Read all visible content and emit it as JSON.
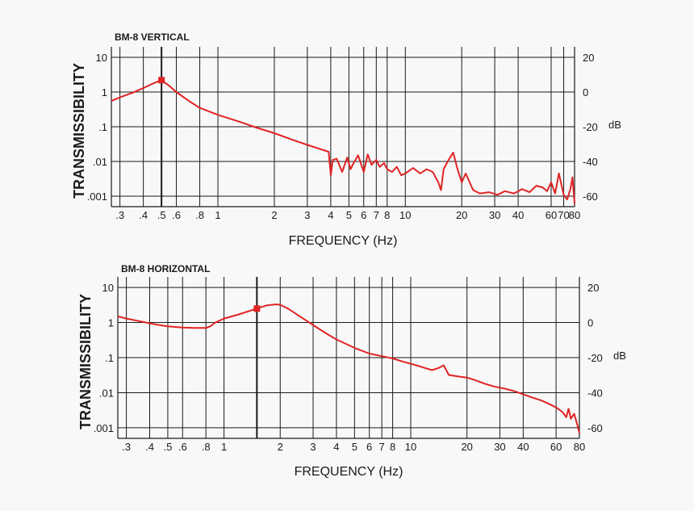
{
  "chart_data": [
    {
      "type": "line",
      "title": "BM-8 VERTICAL",
      "xlabel": "FREQUENCY (Hz)",
      "ylabel": "TRANSMISSIBILITY",
      "x_scale": "log",
      "y_scale": "log",
      "xlim": [
        0.27,
        80
      ],
      "ylim": [
        0.0005,
        20
      ],
      "x_tick_labels": [
        ".3",
        ".4",
        ".5",
        ".6",
        ".8",
        "1",
        "2",
        "3",
        "4",
        "5",
        "6",
        "7",
        "8",
        "10",
        "20",
        "30",
        "40",
        "60",
        "70",
        "80"
      ],
      "x_tick_values": [
        0.3,
        0.4,
        0.5,
        0.6,
        0.8,
        1,
        2,
        3,
        4,
        5,
        6,
        7,
        8,
        10,
        20,
        30,
        40,
        60,
        70,
        80
      ],
      "y_left_tick_labels": [
        "10",
        "1",
        ".1",
        ".01",
        ".001"
      ],
      "y_left_tick_values": [
        10,
        1,
        0.1,
        0.01,
        0.001
      ],
      "y_right_tick_labels": [
        "20",
        "0",
        "-20",
        "-40",
        "-60"
      ],
      "y_right_unit": "dB",
      "grid": true,
      "marker": {
        "x": 0.5,
        "y": 2.2
      },
      "series": [
        {
          "color": "#e02424",
          "x": [
            0.27,
            0.3,
            0.35,
            0.4,
            0.45,
            0.5,
            0.55,
            0.6,
            0.7,
            0.8,
            1.0,
            1.3,
            1.6,
            2.0,
            2.5,
            3.0,
            3.5,
            3.9,
            4.0,
            4.1,
            4.3,
            4.6,
            4.9,
            5.1,
            5.3,
            5.6,
            6.0,
            6.3,
            6.6,
            7.0,
            7.3,
            7.7,
            8.0,
            8.5,
            9.0,
            9.5,
            10.0,
            11.0,
            12.0,
            13.0,
            14.0,
            15.0,
            15.5,
            16.0,
            17.0,
            18.0,
            19.0,
            20.0,
            21.0,
            23.0,
            25.0,
            28.0,
            31.0,
            34.0,
            38.0,
            42.0,
            46.0,
            50.0,
            54.0,
            57.0,
            60.0,
            63.0,
            66.0,
            70.0,
            73.0,
            76.0,
            78.0,
            80.0
          ],
          "values": [
            0.55,
            0.7,
            0.95,
            1.3,
            1.75,
            2.2,
            1.5,
            1.0,
            0.55,
            0.35,
            0.22,
            0.14,
            0.095,
            0.065,
            0.042,
            0.03,
            0.023,
            0.019,
            0.004,
            0.011,
            0.012,
            0.005,
            0.013,
            0.006,
            0.009,
            0.015,
            0.005,
            0.016,
            0.008,
            0.011,
            0.007,
            0.009,
            0.006,
            0.005,
            0.007,
            0.004,
            0.0045,
            0.0065,
            0.0045,
            0.006,
            0.005,
            0.0025,
            0.0015,
            0.006,
            0.011,
            0.018,
            0.006,
            0.0025,
            0.0045,
            0.0015,
            0.0012,
            0.0013,
            0.0011,
            0.0014,
            0.0012,
            0.0016,
            0.0013,
            0.002,
            0.0018,
            0.0014,
            0.0025,
            0.0012,
            0.0045,
            0.0011,
            0.0008,
            0.0016,
            0.0035,
            0.0006
          ]
        }
      ]
    },
    {
      "type": "line",
      "title": "BM-8 HORIZONTAL",
      "xlabel": "FREQUENCY (Hz)",
      "ylabel": "TRANSMISSIBILITY",
      "x_scale": "log",
      "y_scale": "log",
      "xlim": [
        0.27,
        80
      ],
      "ylim": [
        0.0005,
        20
      ],
      "x_tick_labels": [
        ".3",
        ".4",
        ".5",
        ".6",
        ".8",
        "1",
        "2",
        "3",
        "4",
        "5",
        "6",
        "7",
        "8",
        "10",
        "20",
        "30",
        "40",
        "60",
        "80"
      ],
      "x_tick_values": [
        0.3,
        0.4,
        0.5,
        0.6,
        0.8,
        1,
        2,
        3,
        4,
        5,
        6,
        7,
        8,
        10,
        20,
        30,
        40,
        60,
        80
      ],
      "y_left_tick_labels": [
        "10",
        "1",
        ".1",
        ".01",
        ".001"
      ],
      "y_left_tick_values": [
        10,
        1,
        0.1,
        0.01,
        0.001
      ],
      "y_right_tick_labels": [
        "20",
        "0",
        "-20",
        "-40",
        "-60"
      ],
      "y_right_unit": "dB",
      "grid": true,
      "marker": {
        "x": 1.5,
        "y": 2.5
      },
      "series": [
        {
          "color": "#e02424",
          "x": [
            0.27,
            0.3,
            0.35,
            0.4,
            0.45,
            0.5,
            0.6,
            0.7,
            0.8,
            0.85,
            0.9,
            1.0,
            1.2,
            1.5,
            1.7,
            1.9,
            2.0,
            2.2,
            2.5,
            3.0,
            3.5,
            4.0,
            5.0,
            6.0,
            7.0,
            8.0,
            9.0,
            10.0,
            11.0,
            12.0,
            13.0,
            14.0,
            15.0,
            16.0,
            18.0,
            20.0,
            22.0,
            25.0,
            28.0,
            32.0,
            36.0,
            40.0,
            45.0,
            50.0,
            55.0,
            60.0,
            65.0,
            68.0,
            70.0,
            72.0,
            75.0,
            78.0,
            80.0
          ],
          "values": [
            1.5,
            1.3,
            1.1,
            0.95,
            0.85,
            0.78,
            0.72,
            0.7,
            0.7,
            0.8,
            1.0,
            1.3,
            1.7,
            2.5,
            3.1,
            3.3,
            3.2,
            2.5,
            1.6,
            0.85,
            0.5,
            0.33,
            0.19,
            0.13,
            0.11,
            0.095,
            0.078,
            0.067,
            0.058,
            0.05,
            0.044,
            0.05,
            0.06,
            0.032,
            0.029,
            0.027,
            0.023,
            0.018,
            0.015,
            0.013,
            0.011,
            0.009,
            0.0072,
            0.006,
            0.0048,
            0.0038,
            0.0028,
            0.002,
            0.0035,
            0.0018,
            0.0025,
            0.0012,
            0.0007
          ]
        }
      ]
    }
  ]
}
